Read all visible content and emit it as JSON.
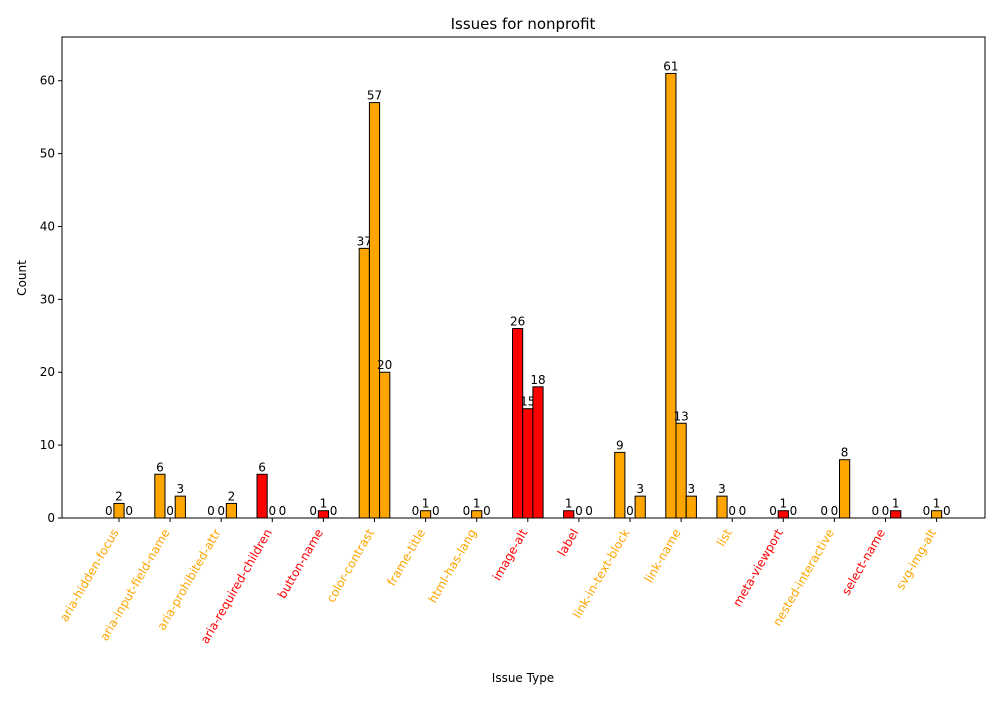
{
  "chart_data": {
    "type": "bar",
    "title": "Issues for nonprofit",
    "xlabel": "Issue Type",
    "ylabel": "Count",
    "ylim": [
      0,
      66
    ],
    "yticks": [
      0,
      10,
      20,
      30,
      40,
      50,
      60
    ],
    "grid": false,
    "legend": "none",
    "colors": {
      "serious": "#ffa500",
      "critical": "#ff0000",
      "edge": "#000000"
    },
    "categories": [
      {
        "label": "aria-hidden-focus",
        "severity": "serious",
        "values": [
          0,
          2,
          0
        ]
      },
      {
        "label": "aria-input-field-name",
        "severity": "serious",
        "values": [
          6,
          0,
          3
        ]
      },
      {
        "label": "aria-prohibited-attr",
        "severity": "serious",
        "values": [
          0,
          0,
          2
        ]
      },
      {
        "label": "aria-required-children",
        "severity": "critical",
        "values": [
          6,
          0,
          0
        ]
      },
      {
        "label": "button-name",
        "severity": "critical",
        "values": [
          0,
          1,
          0
        ]
      },
      {
        "label": "color-contrast",
        "severity": "serious",
        "values": [
          37,
          57,
          20
        ]
      },
      {
        "label": "frame-title",
        "severity": "serious",
        "values": [
          0,
          1,
          0
        ]
      },
      {
        "label": "html-has-lang",
        "severity": "serious",
        "values": [
          0,
          1,
          0
        ]
      },
      {
        "label": "image-alt",
        "severity": "critical",
        "values": [
          26,
          15,
          18
        ]
      },
      {
        "label": "label",
        "severity": "critical",
        "values": [
          1,
          0,
          0
        ]
      },
      {
        "label": "link-in-text-block",
        "severity": "serious",
        "values": [
          9,
          0,
          3
        ]
      },
      {
        "label": "link-name",
        "severity": "serious",
        "values": [
          61,
          13,
          3
        ]
      },
      {
        "label": "list",
        "severity": "serious",
        "values": [
          3,
          0,
          0
        ]
      },
      {
        "label": "meta-viewport",
        "severity": "critical",
        "values": [
          0,
          1,
          0
        ]
      },
      {
        "label": "nested-interactive",
        "severity": "serious",
        "values": [
          0,
          0,
          8
        ]
      },
      {
        "label": "select-name",
        "severity": "critical",
        "values": [
          0,
          0,
          1
        ]
      },
      {
        "label": "svg-img-alt",
        "severity": "serious",
        "values": [
          0,
          1,
          0
        ]
      }
    ]
  }
}
